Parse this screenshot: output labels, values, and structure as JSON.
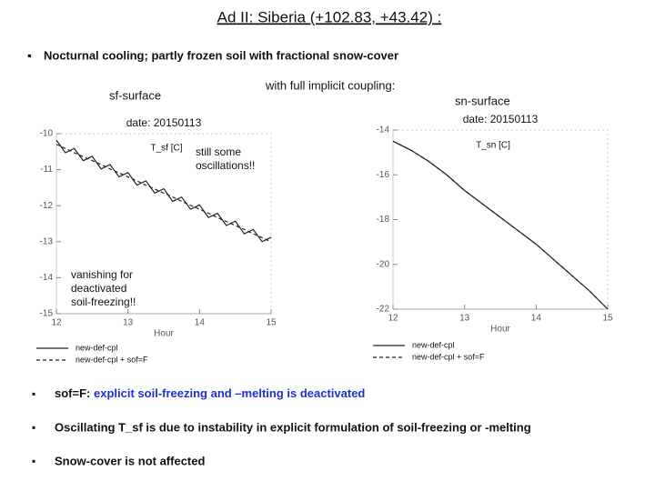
{
  "heading": "Ad II:  Siberia  (+102.83, +43.42) :",
  "intro": "Nocturnal cooling; partly frozen soil with fractional snow-cover",
  "coupling": "with full implicit coupling:",
  "bullets": [
    {
      "lead": "sof=F:",
      "text": "explicit soil-freezing and –melting is deactivated"
    },
    {
      "text": "Oscillating T_sf is due to instability in explicit formulation of soil-freezing or -melting"
    },
    {
      "text": "Snow-cover is not affected"
    }
  ],
  "chart_data": [
    {
      "type": "line",
      "panel": "sf-surface",
      "title": "date: 20150113",
      "ylabel": "T_sf [C]",
      "xlabel": "Hour",
      "annotation": {
        "lines": [
          "still some",
          "oscillations!!"
        ],
        "color": "#e02020"
      },
      "annotation2": {
        "lines": [
          "vanishing for",
          "deactivated",
          "soil-freezing!!"
        ],
        "color": "#2030d0"
      },
      "x": [
        12,
        12.125,
        12.25,
        12.375,
        12.5,
        12.625,
        12.75,
        12.875,
        13,
        13.125,
        13.25,
        13.375,
        13.5,
        13.625,
        13.75,
        13.875,
        14,
        14.125,
        14.25,
        14.375,
        14.5,
        14.625,
        14.75,
        14.875,
        15
      ],
      "series": [
        {
          "name": "new-def-cpl",
          "color": "#222222",
          "dash": false,
          "values": [
            -10.18,
            -10.53,
            -10.41,
            -10.75,
            -10.63,
            -10.98,
            -10.86,
            -11.2,
            -11.08,
            -11.43,
            -11.31,
            -11.65,
            -11.53,
            -11.88,
            -11.76,
            -12.1,
            -11.98,
            -12.33,
            -12.21,
            -12.55,
            -12.43,
            -12.78,
            -12.66,
            -13.0,
            -12.88
          ]
        },
        {
          "name": "new-def-cpl + sof=F",
          "color": "#222222",
          "dash": true,
          "values": [
            -10.3,
            -10.41,
            -10.53,
            -10.64,
            -10.75,
            -10.86,
            -10.98,
            -11.09,
            -11.2,
            -11.31,
            -11.43,
            -11.54,
            -11.65,
            -11.76,
            -11.88,
            -11.99,
            -12.1,
            -12.21,
            -12.33,
            -12.44,
            -12.55,
            -12.66,
            -12.78,
            -12.89,
            -13.0
          ]
        }
      ],
      "xlim": [
        12,
        15
      ],
      "xticks": [
        12,
        13,
        14,
        15
      ],
      "ylim": [
        -15,
        -10
      ],
      "yticks": [
        -15,
        -14,
        -13,
        -12,
        -11,
        -10
      ]
    },
    {
      "type": "line",
      "panel": "sn-surface",
      "title": "date: 20150113",
      "ylabel": "T_sn [C]",
      "xlabel": "Hour",
      "x": [
        12,
        12.25,
        12.5,
        12.75,
        13,
        13.25,
        13.5,
        13.75,
        14,
        14.25,
        14.5,
        14.75,
        15
      ],
      "series": [
        {
          "name": "new-def-cpl",
          "color": "#222222",
          "dash": false,
          "values": [
            -14.5,
            -14.9,
            -15.4,
            -16.0,
            -16.7,
            -17.3,
            -17.9,
            -18.5,
            -19.1,
            -19.8,
            -20.5,
            -21.2,
            -22.0
          ]
        },
        {
          "name": "new-def-cpl + sof=F",
          "color": "#222222",
          "dash": true,
          "values": [
            -14.5,
            -14.9,
            -15.4,
            -16.0,
            -16.7,
            -17.3,
            -17.9,
            -18.5,
            -19.1,
            -19.8,
            -20.5,
            -21.2,
            -22.0
          ]
        }
      ],
      "xlim": [
        12,
        15
      ],
      "xticks": [
        12,
        13,
        14,
        15
      ],
      "ylim": [
        -22,
        -14
      ],
      "yticks": [
        -22,
        -20,
        -18,
        -16,
        -14
      ]
    }
  ]
}
